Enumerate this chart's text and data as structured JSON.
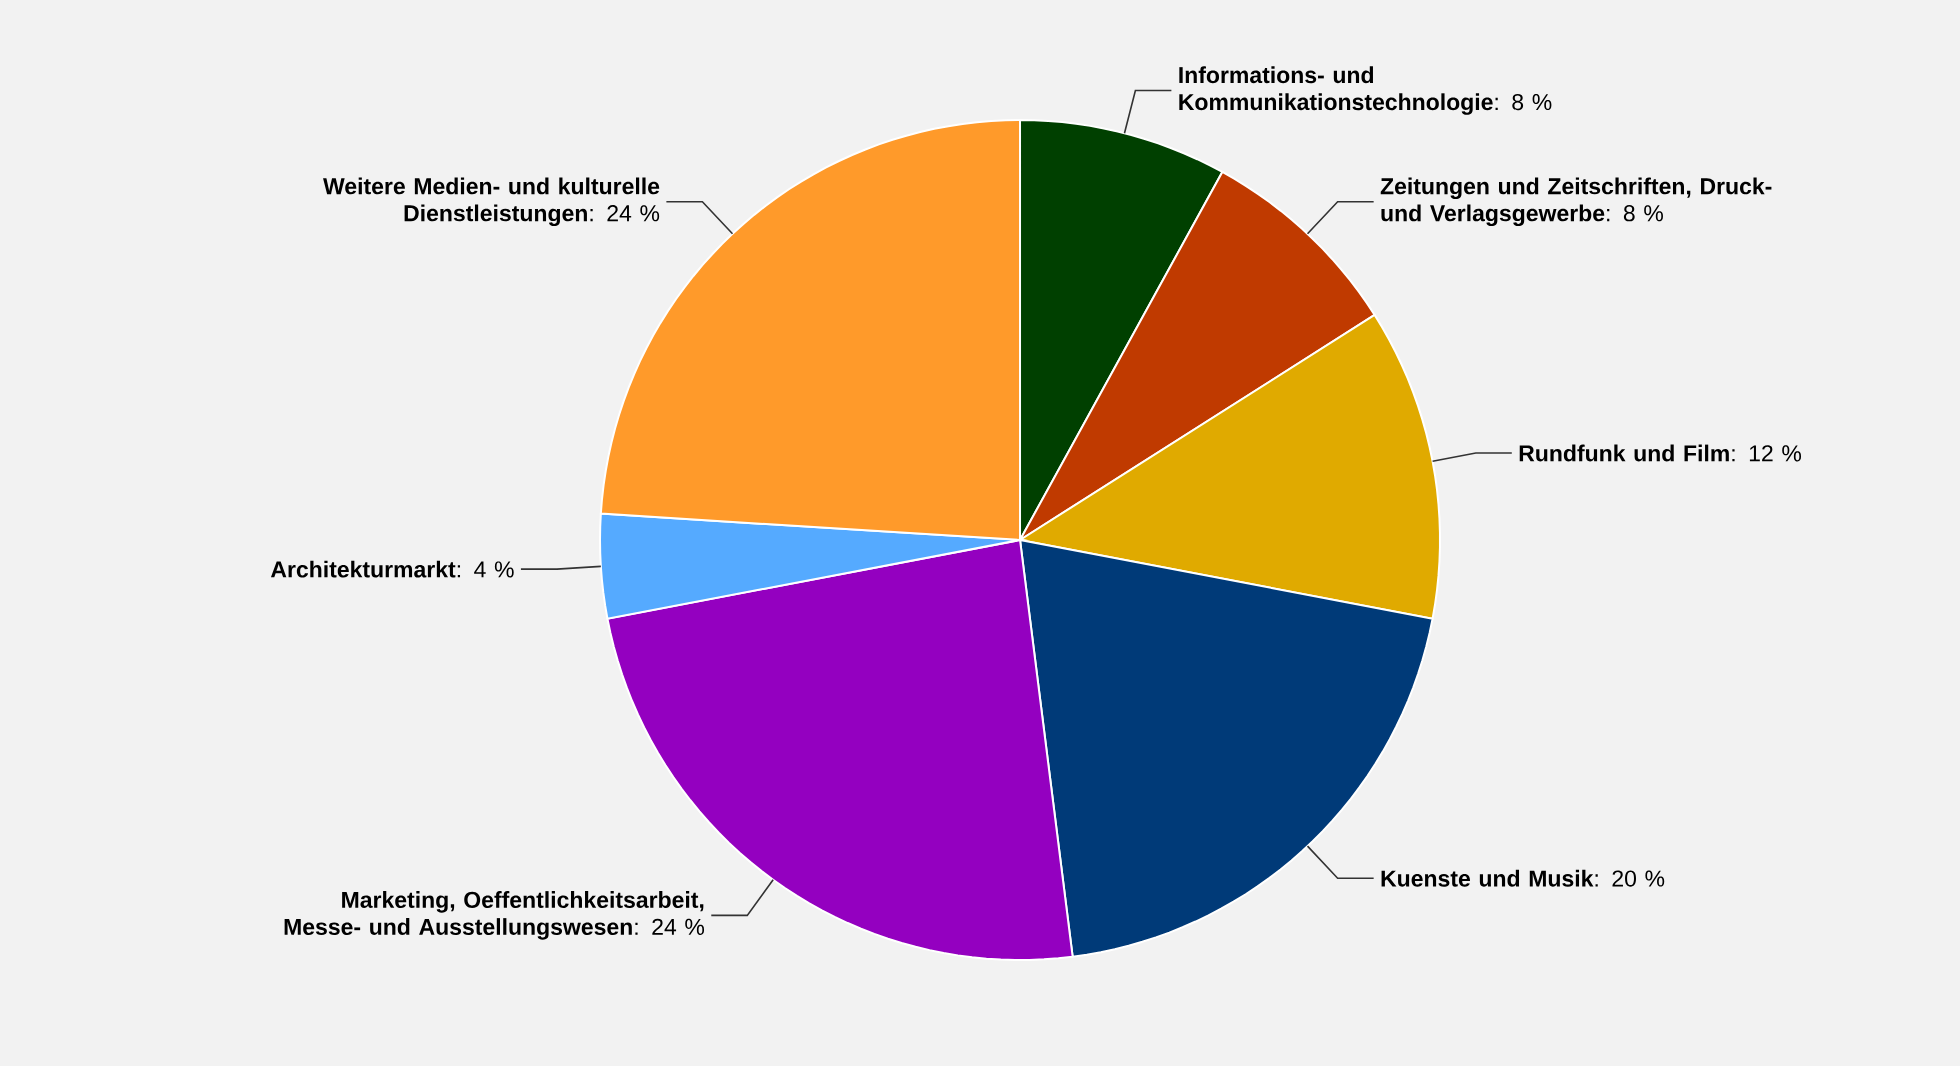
{
  "chart_data": {
    "type": "pie",
    "categories": [
      "Informations- und Kommunikationstechnologie",
      "Zeitungen und Zeitschriften, Druck- und Verlagsgewerbe",
      "Rundfunk und Film",
      "Kuenste und Musik",
      "Marketing, Oeffentlichkeitsarbeit, Messe- und Ausstellungswesen",
      "Architekturmarkt",
      "Weitere Medien- und kulturelle Dienstleistungen"
    ],
    "values": [
      8,
      8,
      12,
      20,
      24,
      4,
      24
    ],
    "value_labels": [
      ": 8 %",
      ": 8 %",
      ": 12 %",
      ": 20 %",
      ": 24 %",
      ": 4 %",
      ": 24 %"
    ],
    "colors": [
      "#004000",
      "#c03a00",
      "#e0aa00",
      "#003a78",
      "#9400c0",
      "#55aaff",
      "#ff9a2a"
    ]
  }
}
